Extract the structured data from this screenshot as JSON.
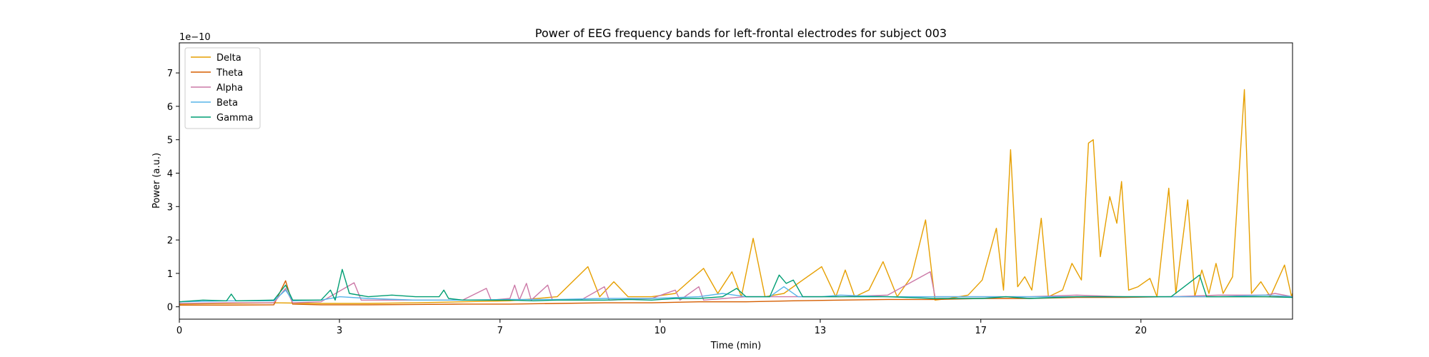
{
  "chart_data": {
    "type": "line",
    "title": "Power of EEG frequency bands for left-frontal electrodes for subject 003",
    "xlabel": "Time (min)",
    "ylabel": "Power (a.u.)",
    "y_offset_label": "1e−10",
    "xlim": [
      0,
      23.57
    ],
    "ylim": [
      -0.37,
      7.9
    ],
    "x_ticks": [
      0,
      3.39,
      6.79,
      10.18,
      13.57,
      16.97,
      20.36
    ],
    "x_tick_labels": [
      "0",
      "3",
      "7",
      "10",
      "13",
      "17",
      "20"
    ],
    "y_ticks": [
      0,
      1,
      2,
      3,
      4,
      5,
      6,
      7
    ],
    "y_tick_labels": [
      "0",
      "1",
      "2",
      "3",
      "4",
      "5",
      "6",
      "7"
    ],
    "grid": false,
    "legend_position": "top-left",
    "colors": {
      "Delta": "#e69f00",
      "Theta": "#d55e00",
      "Alpha": "#cc79a7",
      "Beta": "#56b4e9",
      "Gamma": "#009e73"
    },
    "series": [
      {
        "name": "Delta",
        "points": [
          [
            0,
            0.08
          ],
          [
            1,
            0.1
          ],
          [
            2,
            0.12
          ],
          [
            3,
            0.1
          ],
          [
            4,
            0.1
          ],
          [
            5,
            0.12
          ],
          [
            6,
            0.15
          ],
          [
            7,
            0.18
          ],
          [
            8,
            0.3
          ],
          [
            8.65,
            1.2
          ],
          [
            8.9,
            0.3
          ],
          [
            9.2,
            0.75
          ],
          [
            9.5,
            0.3
          ],
          [
            10,
            0.3
          ],
          [
            10.5,
            0.4
          ],
          [
            11.1,
            1.15
          ],
          [
            11.4,
            0.4
          ],
          [
            11.7,
            1.05
          ],
          [
            11.9,
            0.3
          ],
          [
            12.15,
            2.05
          ],
          [
            12.4,
            0.3
          ],
          [
            12.8,
            0.4
          ],
          [
            13.2,
            0.8
          ],
          [
            13.6,
            1.2
          ],
          [
            13.9,
            0.3
          ],
          [
            14.1,
            1.1
          ],
          [
            14.3,
            0.3
          ],
          [
            14.6,
            0.5
          ],
          [
            14.9,
            1.35
          ],
          [
            15.2,
            0.3
          ],
          [
            15.5,
            0.9
          ],
          [
            15.8,
            2.6
          ],
          [
            16.0,
            0.2
          ],
          [
            16.3,
            0.25
          ],
          [
            16.7,
            0.35
          ],
          [
            17.0,
            0.8
          ],
          [
            17.3,
            2.35
          ],
          [
            17.45,
            0.5
          ],
          [
            17.6,
            4.7
          ],
          [
            17.75,
            0.6
          ],
          [
            17.9,
            0.9
          ],
          [
            18.05,
            0.5
          ],
          [
            18.25,
            2.65
          ],
          [
            18.4,
            0.3
          ],
          [
            18.7,
            0.5
          ],
          [
            18.9,
            1.3
          ],
          [
            19.1,
            0.8
          ],
          [
            19.25,
            4.9
          ],
          [
            19.35,
            5.0
          ],
          [
            19.5,
            1.5
          ],
          [
            19.7,
            3.3
          ],
          [
            19.85,
            2.5
          ],
          [
            19.95,
            3.75
          ],
          [
            20.1,
            0.5
          ],
          [
            20.3,
            0.6
          ],
          [
            20.55,
            0.85
          ],
          [
            20.7,
            0.3
          ],
          [
            20.95,
            3.55
          ],
          [
            21.1,
            0.4
          ],
          [
            21.35,
            3.2
          ],
          [
            21.5,
            0.3
          ],
          [
            21.65,
            1.1
          ],
          [
            21.8,
            0.4
          ],
          [
            21.95,
            1.3
          ],
          [
            22.1,
            0.4
          ],
          [
            22.3,
            0.9
          ],
          [
            22.55,
            6.5
          ],
          [
            22.7,
            0.4
          ],
          [
            22.9,
            0.75
          ],
          [
            23.1,
            0.3
          ],
          [
            23.4,
            1.25
          ],
          [
            23.55,
            0.3
          ],
          [
            23.57,
            0.4
          ]
        ]
      },
      {
        "name": "Theta",
        "points": [
          [
            0,
            0.05
          ],
          [
            1,
            0.05
          ],
          [
            2,
            0.06
          ],
          [
            2.25,
            0.78
          ],
          [
            2.4,
            0.08
          ],
          [
            3,
            0.06
          ],
          [
            4,
            0.06
          ],
          [
            5,
            0.07
          ],
          [
            6,
            0.08
          ],
          [
            7,
            0.08
          ],
          [
            8,
            0.1
          ],
          [
            9,
            0.12
          ],
          [
            10,
            0.12
          ],
          [
            11,
            0.15
          ],
          [
            12,
            0.15
          ],
          [
            13,
            0.18
          ],
          [
            14,
            0.2
          ],
          [
            15,
            0.22
          ],
          [
            16,
            0.22
          ],
          [
            17,
            0.25
          ],
          [
            18,
            0.25
          ],
          [
            19,
            0.28
          ],
          [
            20,
            0.28
          ],
          [
            21,
            0.3
          ],
          [
            22,
            0.3
          ],
          [
            23,
            0.3
          ],
          [
            23.57,
            0.3
          ]
        ]
      },
      {
        "name": "Alpha",
        "points": [
          [
            0,
            0.1
          ],
          [
            1,
            0.12
          ],
          [
            2,
            0.12
          ],
          [
            2.25,
            0.55
          ],
          [
            2.4,
            0.12
          ],
          [
            3,
            0.15
          ],
          [
            3.7,
            0.72
          ],
          [
            3.85,
            0.2
          ],
          [
            5,
            0.2
          ],
          [
            6,
            0.2
          ],
          [
            6.5,
            0.55
          ],
          [
            6.6,
            0.2
          ],
          [
            7.0,
            0.25
          ],
          [
            7.1,
            0.65
          ],
          [
            7.2,
            0.2
          ],
          [
            7.35,
            0.7
          ],
          [
            7.45,
            0.2
          ],
          [
            7.8,
            0.65
          ],
          [
            7.9,
            0.2
          ],
          [
            8.5,
            0.2
          ],
          [
            9.0,
            0.6
          ],
          [
            9.1,
            0.2
          ],
          [
            10,
            0.25
          ],
          [
            10.5,
            0.5
          ],
          [
            10.6,
            0.2
          ],
          [
            11.0,
            0.6
          ],
          [
            11.1,
            0.2
          ],
          [
            12,
            0.3
          ],
          [
            13,
            0.3
          ],
          [
            14,
            0.3
          ],
          [
            15,
            0.35
          ],
          [
            15.9,
            1.05
          ],
          [
            16.0,
            0.3
          ],
          [
            17,
            0.3
          ],
          [
            18,
            0.3
          ],
          [
            19,
            0.35
          ],
          [
            20,
            0.3
          ],
          [
            21,
            0.3
          ],
          [
            22,
            0.35
          ],
          [
            23,
            0.35
          ],
          [
            23.2,
            0.4
          ],
          [
            23.57,
            0.3
          ]
        ]
      },
      {
        "name": "Beta",
        "points": [
          [
            0,
            0.15
          ],
          [
            1,
            0.18
          ],
          [
            2,
            0.18
          ],
          [
            2.25,
            0.5
          ],
          [
            2.4,
            0.18
          ],
          [
            3,
            0.2
          ],
          [
            3.4,
            0.3
          ],
          [
            4,
            0.25
          ],
          [
            5,
            0.2
          ],
          [
            6,
            0.2
          ],
          [
            7,
            0.22
          ],
          [
            8,
            0.22
          ],
          [
            9,
            0.25
          ],
          [
            10,
            0.25
          ],
          [
            11,
            0.3
          ],
          [
            11.5,
            0.4
          ],
          [
            12,
            0.3
          ],
          [
            12.5,
            0.3
          ],
          [
            12.8,
            0.6
          ],
          [
            13.1,
            0.3
          ],
          [
            13.6,
            0.3
          ],
          [
            14,
            0.35
          ],
          [
            15,
            0.3
          ],
          [
            16,
            0.3
          ],
          [
            17,
            0.3
          ],
          [
            18,
            0.3
          ],
          [
            19,
            0.3
          ],
          [
            20,
            0.3
          ],
          [
            21,
            0.3
          ],
          [
            22,
            0.3
          ],
          [
            23,
            0.35
          ],
          [
            23.57,
            0.3
          ]
        ]
      },
      {
        "name": "Gamma",
        "points": [
          [
            0,
            0.15
          ],
          [
            0.5,
            0.2
          ],
          [
            1,
            0.18
          ],
          [
            1.1,
            0.38
          ],
          [
            1.2,
            0.18
          ],
          [
            2,
            0.2
          ],
          [
            2.25,
            0.65
          ],
          [
            2.4,
            0.2
          ],
          [
            3,
            0.2
          ],
          [
            3.2,
            0.5
          ],
          [
            3.3,
            0.2
          ],
          [
            3.45,
            1.12
          ],
          [
            3.6,
            0.4
          ],
          [
            4,
            0.3
          ],
          [
            4.5,
            0.35
          ],
          [
            5,
            0.3
          ],
          [
            5.5,
            0.3
          ],
          [
            5.6,
            0.5
          ],
          [
            5.7,
            0.25
          ],
          [
            6,
            0.2
          ],
          [
            6.5,
            0.2
          ],
          [
            7,
            0.2
          ],
          [
            7.5,
            0.18
          ],
          [
            8,
            0.2
          ],
          [
            8.5,
            0.2
          ],
          [
            9,
            0.2
          ],
          [
            9.5,
            0.22
          ],
          [
            10,
            0.2
          ],
          [
            10.5,
            0.25
          ],
          [
            11,
            0.25
          ],
          [
            11.5,
            0.3
          ],
          [
            11.8,
            0.55
          ],
          [
            12,
            0.3
          ],
          [
            12.5,
            0.3
          ],
          [
            12.7,
            0.95
          ],
          [
            12.85,
            0.7
          ],
          [
            13,
            0.8
          ],
          [
            13.2,
            0.3
          ],
          [
            14,
            0.3
          ],
          [
            15,
            0.3
          ],
          [
            16,
            0.25
          ],
          [
            17,
            0.25
          ],
          [
            17.5,
            0.3
          ],
          [
            18,
            0.25
          ],
          [
            19,
            0.3
          ],
          [
            20,
            0.3
          ],
          [
            21,
            0.3
          ],
          [
            21.6,
            0.95
          ],
          [
            21.75,
            0.3
          ],
          [
            22,
            0.3
          ],
          [
            22.5,
            0.3
          ],
          [
            23,
            0.3
          ],
          [
            23.57,
            0.28
          ]
        ]
      }
    ]
  }
}
